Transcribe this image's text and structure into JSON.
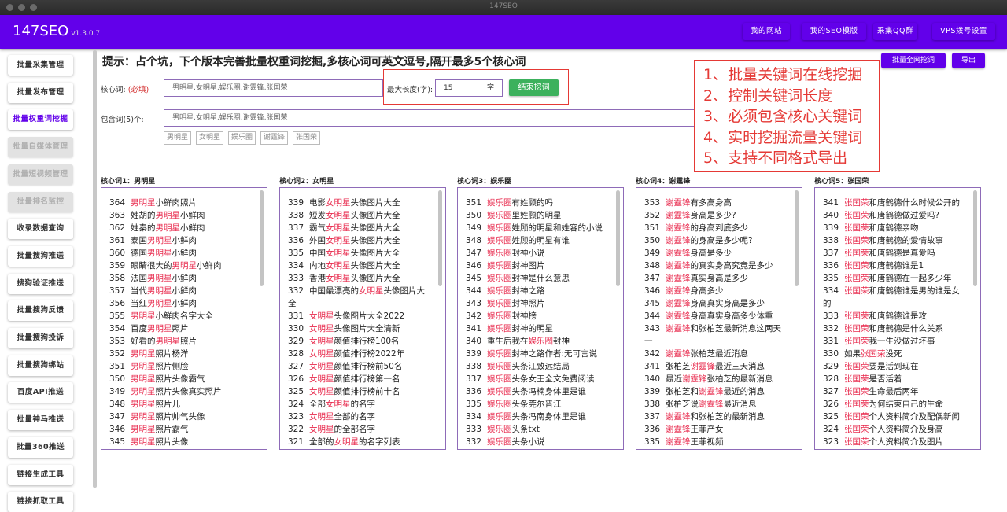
{
  "window": {
    "title": "147SEO"
  },
  "header": {
    "logo": "147SEO",
    "version": "v1.3.0.7",
    "nav": [
      "我的网站",
      "我的SEO模版",
      "采集QQ群",
      "VPS拨号设置"
    ]
  },
  "sidebar": {
    "items": [
      {
        "label": "批量采集管理",
        "state": "normal"
      },
      {
        "label": "批量发布管理",
        "state": "normal"
      },
      {
        "label": "批量权重词挖掘",
        "state": "active"
      },
      {
        "label": "批量自媒体管理",
        "state": "disabled"
      },
      {
        "label": "批量短视频管理",
        "state": "disabled"
      },
      {
        "label": "批量排名监控",
        "state": "disabled"
      },
      {
        "label": "收录数据查询",
        "state": "normal"
      },
      {
        "label": "批量搜狗推送",
        "state": "normal"
      },
      {
        "label": "搜狗验证推送",
        "state": "normal"
      },
      {
        "label": "批量搜狗反馈",
        "state": "normal"
      },
      {
        "label": "批量搜狗投诉",
        "state": "normal"
      },
      {
        "label": "批量搜狗绑站",
        "state": "normal"
      },
      {
        "label": "百度API推送",
        "state": "normal"
      },
      {
        "label": "批量神马推送",
        "state": "normal"
      },
      {
        "label": "批量360推送",
        "state": "normal"
      },
      {
        "label": "链接生成工具",
        "state": "normal"
      },
      {
        "label": "链接抓取工具",
        "state": "normal"
      }
    ]
  },
  "main": {
    "hint": "提示：占个坑，下个版本完善批量权重词挖掘,多核心词可英文逗号,隔开最多5个核心词",
    "core_label": "核心词:",
    "core_required": "(必填)",
    "core_value": "男明星,女明星,娱乐圈,谢霆锋,张国荣",
    "maxlen_label": "最大长度(字):",
    "maxlen_value": "15",
    "maxlen_unit": "字",
    "stop_button": "结束挖词",
    "include_label": "包含词(5)个:",
    "include_value": "男明星,女明星,娱乐圈,谢霆锋,张国荣",
    "tags": [
      "男明星",
      "女明星",
      "娱乐圈",
      "谢霆锋",
      "张国荣"
    ],
    "batch_button": "批量全网挖词",
    "export_button": "导出",
    "features": [
      "1、批量关键词在线挖掘",
      "2、控制关键词长度",
      "3、必须包含核心关键词",
      "4、实时挖掘流量关键词",
      "5、支持不同格式导出"
    ],
    "columns": [
      {
        "title": "核心词1：男明星",
        "keyword": "男明星",
        "items": [
          [
            "364",
            "男明星小鲜肉照片"
          ],
          [
            "363",
            "姓胡的男明星小鲜肉"
          ],
          [
            "362",
            "姓秦的男明星小鲜肉"
          ],
          [
            "361",
            "泰国男明星小鲜肉"
          ],
          [
            "360",
            "德国男明星小鲜肉"
          ],
          [
            "359",
            "眼睛很大的男明星小鲜肉"
          ],
          [
            "358",
            "法国男明星小鲜肉"
          ],
          [
            "357",
            "当代男明星小鲜肉"
          ],
          [
            "356",
            "当红男明星小鲜肉"
          ],
          [
            "355",
            "男明星小鲜肉名字大全"
          ],
          [
            "354",
            "百度男明星照片"
          ],
          [
            "353",
            "好看的男明星照片"
          ],
          [
            "352",
            "男明星照片杨洋"
          ],
          [
            "351",
            "男明星照片侧脸"
          ],
          [
            "350",
            "男明星照片头像霸气"
          ],
          [
            "349",
            "男明星照片头像真实照片"
          ],
          [
            "348",
            "男明星照片儿"
          ],
          [
            "347",
            "男明星照片帅气头像"
          ],
          [
            "346",
            "男明星照片霸气"
          ],
          [
            "345",
            "男明星照片头像"
          ]
        ]
      },
      {
        "title": "核心词2：女明星",
        "keyword": "女明星",
        "items": [
          [
            "339",
            "电影女明星头像图片大全"
          ],
          [
            "338",
            "短发女明星头像图片大全"
          ],
          [
            "337",
            "霸气女明星头像图片大全"
          ],
          [
            "336",
            "外国女明星头像图片大全"
          ],
          [
            "335",
            "中国女明星头像图片大全"
          ],
          [
            "334",
            "内地女明星头像图片大全"
          ],
          [
            "333",
            "香港女明星头像图片大全"
          ],
          [
            "332",
            "中国最漂亮的女明星头像图片大全"
          ],
          [
            "331",
            "女明星头像图片大全2022"
          ],
          [
            "330",
            "女明星头像图片大全清新"
          ],
          [
            "329",
            "女明星颜值排行榜100名"
          ],
          [
            "328",
            "女明星颜值排行榜2022年"
          ],
          [
            "327",
            "女明星颜值排行榜前50名"
          ],
          [
            "326",
            "女明星颜值排行榜第一名"
          ],
          [
            "325",
            "女明星颜值排行榜前十名"
          ],
          [
            "324",
            "全部女明星的名字"
          ],
          [
            "323",
            "女明星全部的名字"
          ],
          [
            "322",
            "女明星的全部名字"
          ],
          [
            "321",
            "全部的女明星的名字列表"
          ]
        ]
      },
      {
        "title": "核心词3：娱乐圈",
        "keyword": "娱乐圈",
        "items": [
          [
            "351",
            "娱乐圈有姓顾的吗"
          ],
          [
            "350",
            "娱乐圈里姓顾的明星"
          ],
          [
            "349",
            "娱乐圈姓顾的明星和姓容的小说"
          ],
          [
            "348",
            "娱乐圈姓顾的明星有谁"
          ],
          [
            "347",
            "娱乐圈封神小说"
          ],
          [
            "346",
            "娱乐圈封神图片"
          ],
          [
            "345",
            "娱乐圈封神是什么意思"
          ],
          [
            "344",
            "娱乐圈封神之路"
          ],
          [
            "343",
            "娱乐圈封神照片"
          ],
          [
            "342",
            "娱乐圈封神榜"
          ],
          [
            "341",
            "娱乐圈封神的明星"
          ],
          [
            "340",
            "重生后我在娱乐圈封神"
          ],
          [
            "339",
            "娱乐圈封神之路作者:无可言说"
          ],
          [
            "338",
            "娱乐圈头条江致远结局"
          ],
          [
            "337",
            "娱乐圈头条女王全文免费阅读"
          ],
          [
            "336",
            "娱乐圈头条冯楠身体里是谁"
          ],
          [
            "335",
            "娱乐圈头条莞尔晋江"
          ],
          [
            "334",
            "娱乐圈头条冯南身体里是谁"
          ],
          [
            "333",
            "娱乐圈头条txt"
          ],
          [
            "332",
            "娱乐圈头条小说"
          ]
        ]
      },
      {
        "title": "核心词4：谢霆锋",
        "keyword": "谢霆锋",
        "items": [
          [
            "353",
            "谢霆锋有多高身高"
          ],
          [
            "352",
            "谢霆锋身高是多少?"
          ],
          [
            "351",
            "谢霆锋的身高到底多少"
          ],
          [
            "350",
            "谢霆锋的身高是多少呢?"
          ],
          [
            "349",
            "谢霆锋身高是多少"
          ],
          [
            "348",
            "谢霆锋的真实身高究竟是多少"
          ],
          [
            "347",
            "谢霆锋真实身高是多少"
          ],
          [
            "346",
            "谢霆锋身高多少"
          ],
          [
            "345",
            "谢霆锋身高真实身高是多少"
          ],
          [
            "344",
            "谢霆锋身高真实身高多少体重"
          ],
          [
            "343",
            "谢霆锋和张柏芝最新消息这两天一"
          ],
          [
            "342",
            "谢霆锋张柏芝最近消息"
          ],
          [
            "341",
            "张柏芝谢霆锋最近三天消息"
          ],
          [
            "340",
            "最近谢霆锋张柏芝的最新消息"
          ],
          [
            "339",
            "张柏芝和谢霆锋最近的消息"
          ],
          [
            "338",
            "张柏芝说谢霆锋最近消息"
          ],
          [
            "337",
            "谢霆锋和张柏芝的最新消息"
          ],
          [
            "336",
            "谢霆锋王菲产女"
          ],
          [
            "335",
            "谢霆锋王菲视频"
          ]
        ]
      },
      {
        "title": "核心词5：张国荣",
        "keyword": "张国荣",
        "items": [
          [
            "341",
            "张国荣和唐鹤德什么时候公开的"
          ],
          [
            "340",
            "张国荣和唐鹤德做过爱吗?"
          ],
          [
            "339",
            "张国荣和唐鹤德亲吻"
          ],
          [
            "338",
            "张国荣和唐鹤德的爱情故事"
          ],
          [
            "337",
            "张国荣和唐鹤德是真爱吗"
          ],
          [
            "336",
            "张国荣和唐鹤德谁是1"
          ],
          [
            "335",
            "张国荣和唐鹤德在一起多少年"
          ],
          [
            "334",
            "张国荣和唐鹤德谁是男的谁是女的"
          ],
          [
            "333",
            "张国荣和唐鹤德谁是攻"
          ],
          [
            "332",
            "张国荣和唐鹤德是什么关系"
          ],
          [
            "331",
            "张国荣我一生没做过坏事"
          ],
          [
            "330",
            "如果张国荣没死"
          ],
          [
            "329",
            "张国荣要是活到现在"
          ],
          [
            "328",
            "张国荣是否活着"
          ],
          [
            "327",
            "张国荣生命最后两年"
          ],
          [
            "326",
            "张国荣为何结束自己的生命"
          ],
          [
            "325",
            "张国荣个人资料简介及配偶新闻"
          ],
          [
            "324",
            "张国荣个人资料简介及身高"
          ],
          [
            "323",
            "张国荣个人资料简介及图片"
          ]
        ]
      }
    ]
  },
  "colors": {
    "primary": "#6200ea",
    "highlight": "#e8294c",
    "red_box": "#e53935",
    "green": "#3cb15d"
  }
}
